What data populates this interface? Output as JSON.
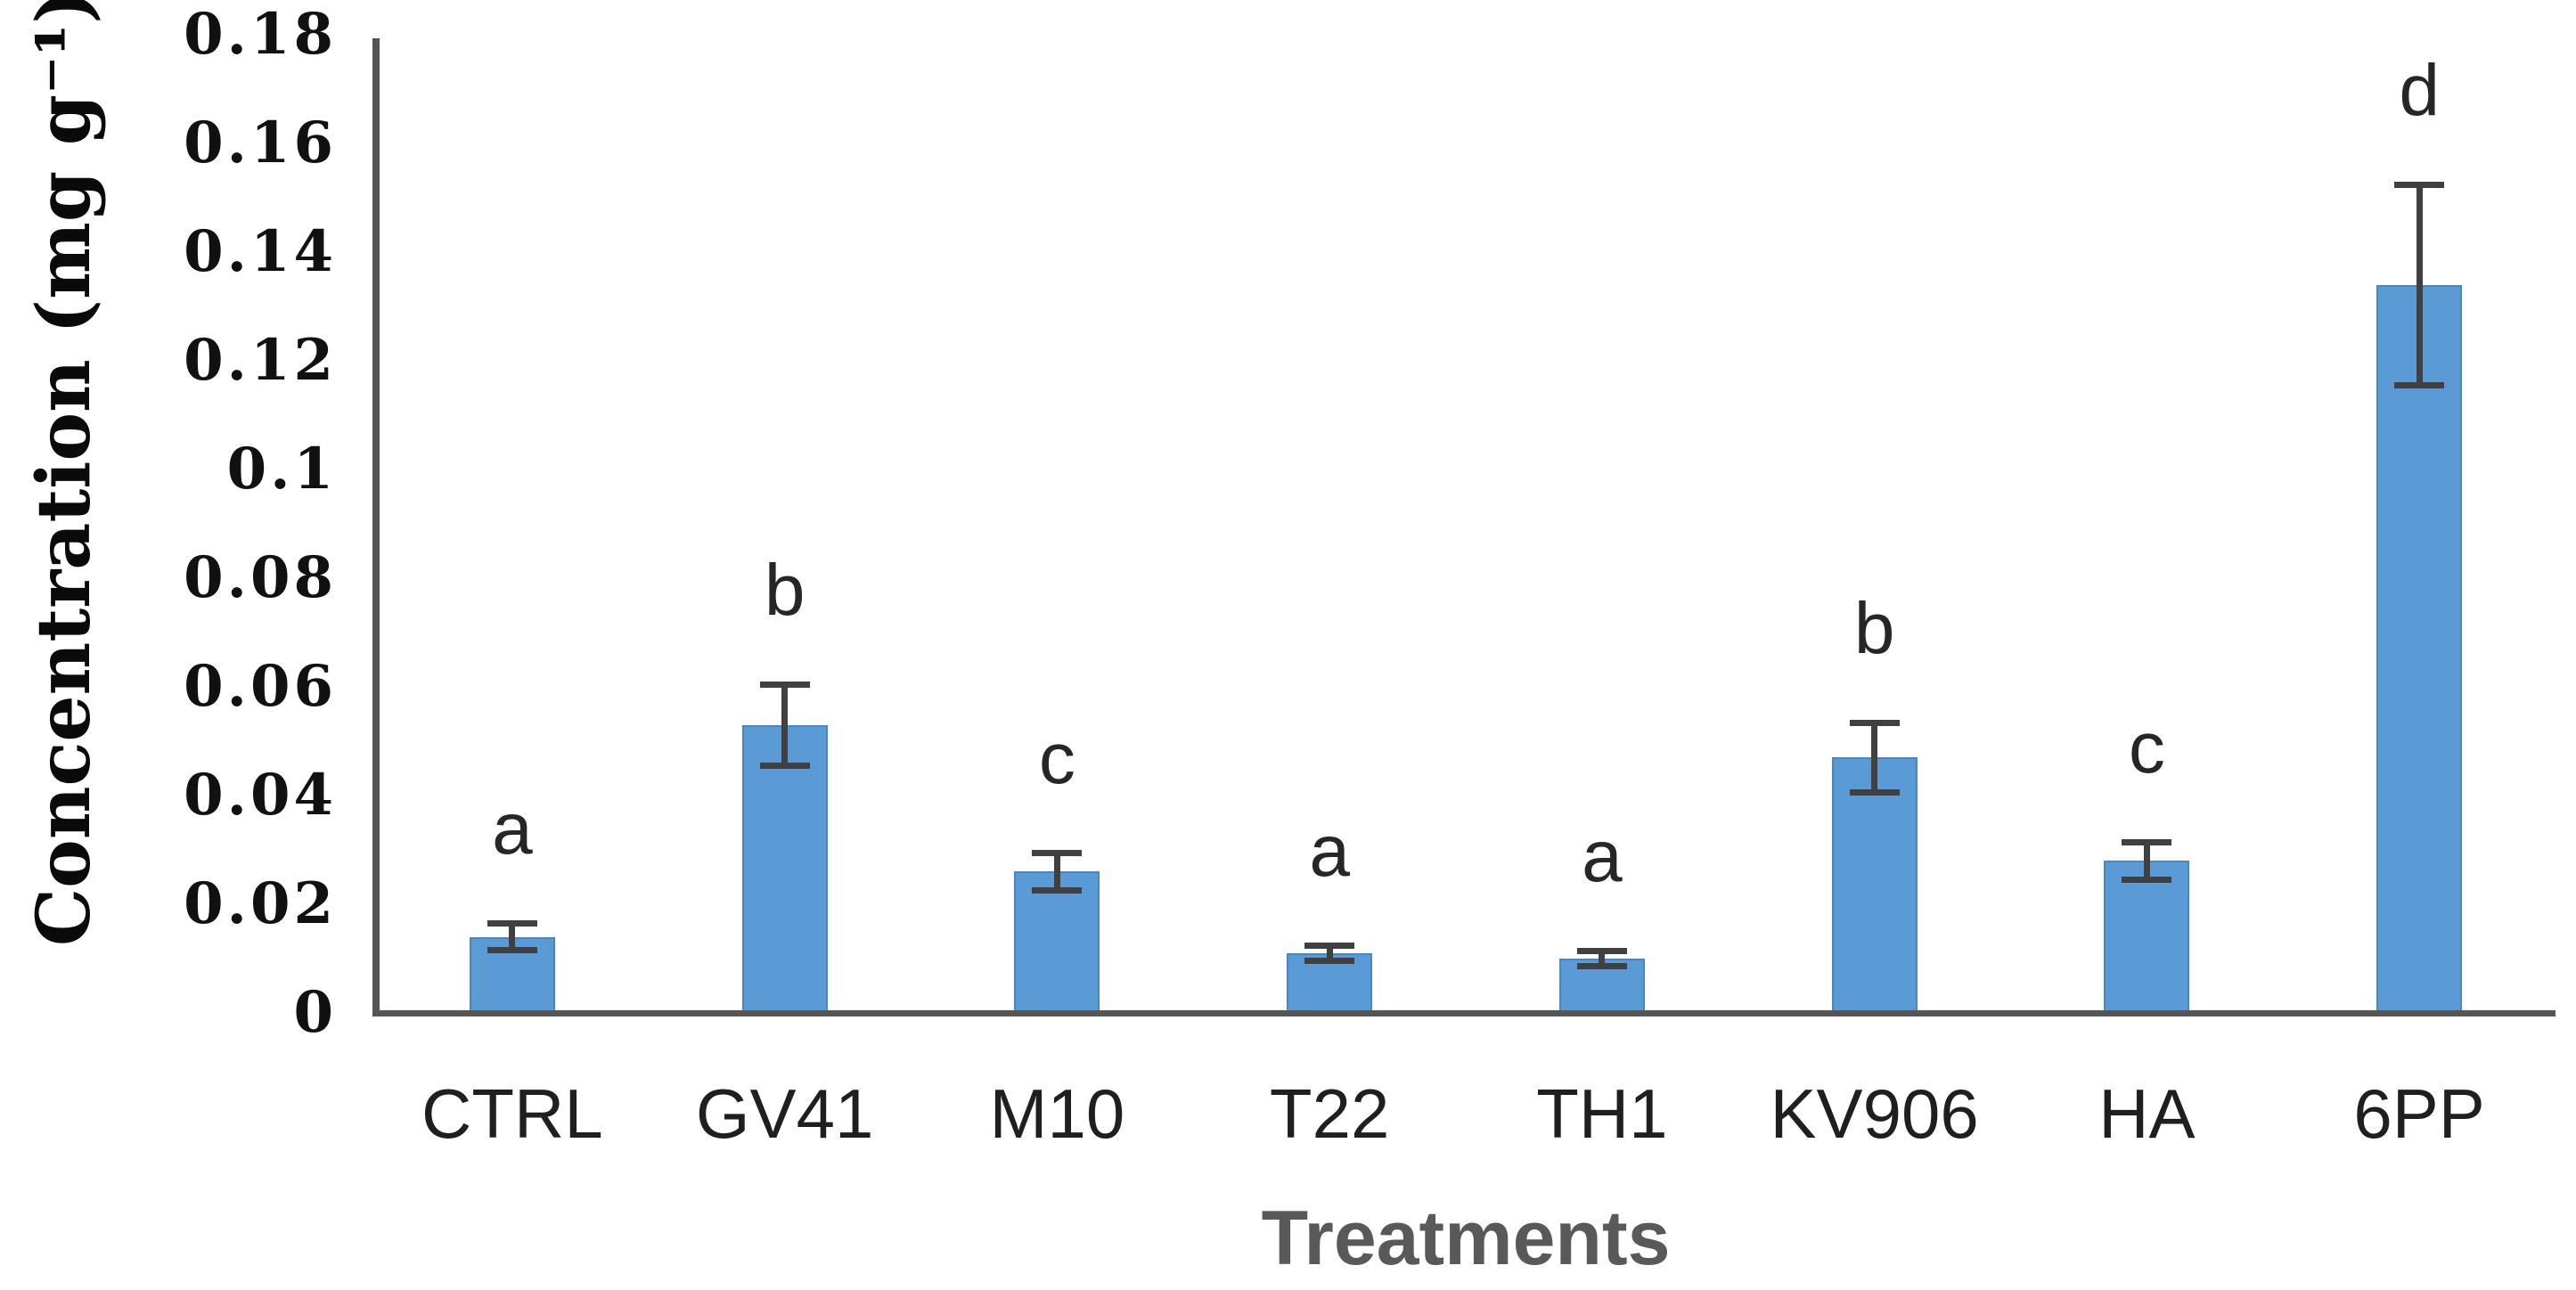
{
  "figure": {
    "background": "#ffffff"
  },
  "chart_data": {
    "type": "bar",
    "xlabel": "Treatments",
    "ylabel": "Concentration (mg g⁻¹)",
    "categories": [
      "CTRL",
      "GV41",
      "M10",
      "T22",
      "TH1",
      "KV906",
      "HA",
      "6PP"
    ],
    "values": [
      0.014,
      0.053,
      0.026,
      0.011,
      0.01,
      0.047,
      0.028,
      0.134
    ],
    "error_bars": [
      0.003,
      0.008,
      0.004,
      0.002,
      0.002,
      0.007,
      0.004,
      0.019
    ],
    "significance_letters": [
      "a",
      "b",
      "c",
      "a",
      "a",
      "b",
      "c",
      "d"
    ],
    "yticks": [
      {
        "value": 0,
        "label": "0"
      },
      {
        "value": 0.02,
        "label": "0.02"
      },
      {
        "value": 0.04,
        "label": "0.04"
      },
      {
        "value": 0.06,
        "label": "0.06"
      },
      {
        "value": 0.08,
        "label": "0.08"
      },
      {
        "value": 0.1,
        "label": "0.1"
      },
      {
        "value": 0.12,
        "label": "0.12"
      },
      {
        "value": 0.14,
        "label": "0.14"
      },
      {
        "value": 0.16,
        "label": "0.16"
      },
      {
        "value": 0.18,
        "label": "0.18"
      }
    ],
    "ylim": [
      0,
      0.18
    ],
    "grid": false,
    "legend": null,
    "colors": {
      "bar_fill": "#5b9bd5",
      "bar_border": "#4a86c0",
      "error_bar": "#404040",
      "axis_line": "#555555",
      "y_tick_label": "#111111",
      "x_tick_label": "#1f1f1f",
      "letter": "#262626",
      "x_axis_title": "#595959",
      "y_axis_title": "#0a0a0a"
    }
  }
}
